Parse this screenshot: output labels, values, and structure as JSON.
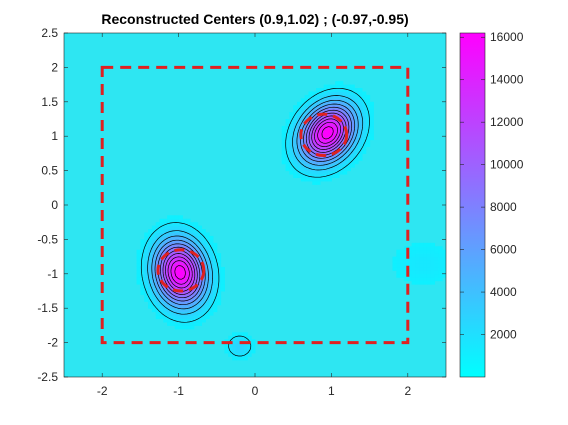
{
  "chart_data": {
    "type": "heatmap",
    "title": "Reconstructed Centers (0.9,1.02)  ;  (-0.97,-0.95)",
    "xlabel": "",
    "ylabel": "",
    "xlim": [
      -2.5,
      2.5
    ],
    "ylim": [
      -2.5,
      2.5
    ],
    "x_ticks": [
      -2,
      -1,
      0,
      1,
      2
    ],
    "x_tick_labels": [
      "-2",
      "-1",
      "0",
      "1",
      "2"
    ],
    "y_ticks": [
      2.5,
      2,
      1.5,
      1,
      0.5,
      0,
      -0.5,
      -1,
      -1.5,
      -2,
      -2.5
    ],
    "y_tick_labels": [
      "2.5",
      "2",
      "1.5",
      "1",
      "0.5",
      "0",
      "-0.5",
      "-1",
      "-1.5",
      "-2",
      "-2.5"
    ],
    "colorbar": {
      "min": 0,
      "max": 16200,
      "ticks": [
        2000,
        4000,
        6000,
        8000,
        10000,
        12000,
        14000,
        16000
      ],
      "tick_labels": [
        "2000",
        "4000",
        "6000",
        "8000",
        "10000",
        "12000",
        "14000",
        "16000"
      ],
      "colors": [
        "#00ffff",
        "#ff00ff"
      ]
    },
    "background_color": "#2ee6f2",
    "boundary_box": {
      "x": [
        -2,
        2
      ],
      "y": [
        -2,
        2
      ],
      "color": "#e02020",
      "style": "dashed"
    },
    "centers": [
      {
        "x": 0.9,
        "y": 1.02
      },
      {
        "x": -0.97,
        "y": -0.95
      }
    ],
    "blobs": [
      {
        "cx": 0.95,
        "cy": 1.05,
        "sx": 0.22,
        "sy": 0.3,
        "peak": 16000,
        "rot": -0.5
      },
      {
        "cx": -0.98,
        "cy": -0.98,
        "sx": 0.22,
        "sy": 0.32,
        "peak": 16000,
        "rot": 0.15
      },
      {
        "cx": -0.2,
        "cy": -2.05,
        "sx": 0.12,
        "sy": 0.12,
        "peak": 2500,
        "rot": 0
      },
      {
        "cx": 2.2,
        "cy": -0.85,
        "sx": 0.35,
        "sy": 0.25,
        "peak": 1200,
        "rot": 0
      }
    ],
    "circle_radius": 0.3
  }
}
